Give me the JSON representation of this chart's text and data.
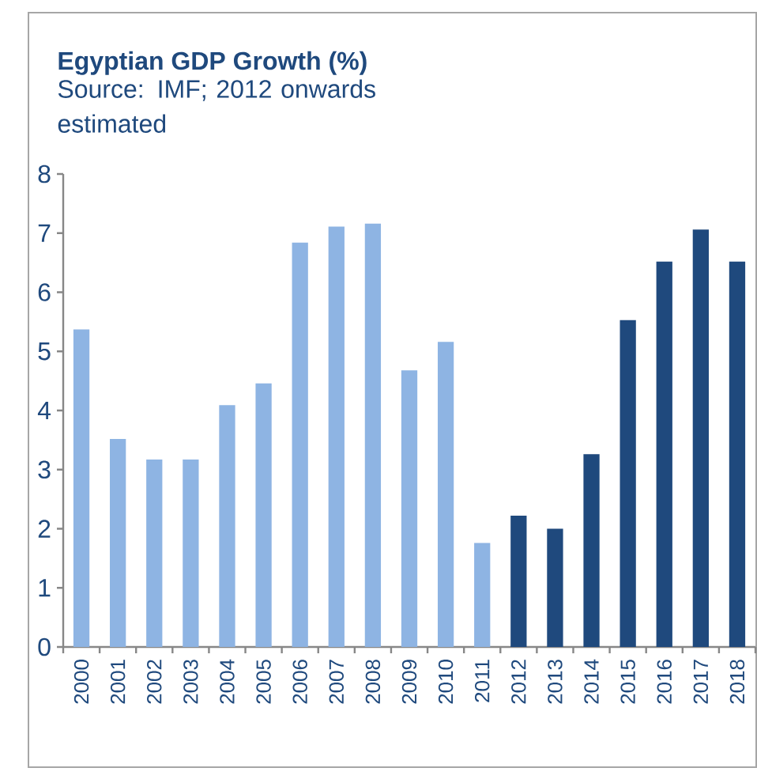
{
  "chart_data": {
    "type": "bar",
    "title": "Egyptian GDP Growth (%)",
    "annotations": [
      "Source: IMF; 2012 onwards estimated"
    ],
    "categories": [
      "2000",
      "2001",
      "2002",
      "2003",
      "2004",
      "2005",
      "2006",
      "2007",
      "2008",
      "2009",
      "2010",
      "2011",
      "2012",
      "2013",
      "2014",
      "2015",
      "2016",
      "2017",
      "2018"
    ],
    "values": [
      5.37,
      3.52,
      3.17,
      3.17,
      4.09,
      4.46,
      6.84,
      7.11,
      7.16,
      4.68,
      5.16,
      1.76,
      2.22,
      2.0,
      3.26,
      5.53,
      6.52,
      7.06,
      6.52
    ],
    "colors": [
      "#8eb4e3",
      "#8eb4e3",
      "#8eb4e3",
      "#8eb4e3",
      "#8eb4e3",
      "#8eb4e3",
      "#8eb4e3",
      "#8eb4e3",
      "#8eb4e3",
      "#8eb4e3",
      "#8eb4e3",
      "#8eb4e3",
      "#1f497d",
      "#1f497d",
      "#1f497d",
      "#1f497d",
      "#1f497d",
      "#1f497d",
      "#1f497d"
    ],
    "ylim": [
      0,
      8
    ],
    "yticks": [
      0,
      1,
      2,
      3,
      4,
      5,
      6,
      7,
      8
    ]
  }
}
